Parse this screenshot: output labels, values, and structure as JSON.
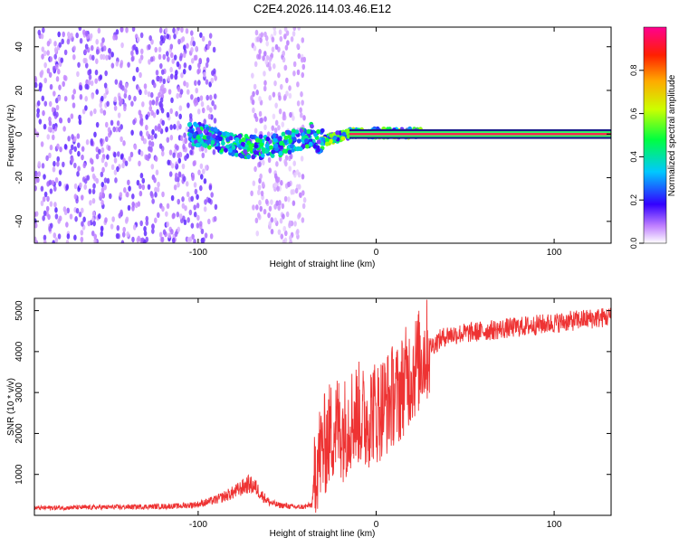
{
  "title": "C2E4.2026.114.03.46.E12",
  "chart_data": [
    {
      "type": "heatmap",
      "xlabel": "Height of straight line (km)",
      "ylabel": "Frequency (Hz)",
      "xlim": [
        -192,
        132
      ],
      "ylim": [
        -50,
        49
      ],
      "xticks": [
        -100,
        0,
        100
      ],
      "yticks": [
        -40,
        -20,
        0,
        20,
        40
      ],
      "colorbar": {
        "label": "Normalized spectral amplitude",
        "range": [
          0,
          1
        ],
        "ticks": [
          0.0,
          0.2,
          0.4,
          0.6,
          0.8
        ]
      }
    },
    {
      "type": "line",
      "xlabel": "Height of straight line (km)",
      "ylabel": "SNR (10 * v/v)",
      "xlim": [
        -192,
        132
      ],
      "ylim": [
        0,
        5300
      ],
      "xticks": [
        -100,
        0,
        100
      ],
      "yticks": [
        1000,
        2000,
        3000,
        4000,
        5000
      ],
      "color": "#ee3333",
      "series": [
        {
          "name": "SNR",
          "x": [
            -192,
            -170,
            -150,
            -130,
            -110,
            -100,
            -90,
            -80,
            -72,
            -68,
            -64,
            -60,
            -55,
            -50,
            -45,
            -40,
            -36,
            -34,
            -30,
            -26,
            -22,
            -18,
            -14,
            -10,
            -6,
            -2,
            0,
            4,
            8,
            10,
            12,
            16,
            20,
            26,
            30,
            36,
            40,
            50,
            60,
            70,
            80,
            90,
            100,
            110,
            120,
            132
          ],
          "values": [
            180,
            190,
            200,
            210,
            230,
            270,
            380,
            560,
            760,
            700,
            480,
            320,
            250,
            230,
            200,
            210,
            260,
            1300,
            1600,
            2000,
            2200,
            2100,
            2400,
            2500,
            2300,
            2600,
            2500,
            2700,
            2800,
            3000,
            2900,
            3300,
            3500,
            3900,
            4100,
            4300,
            4400,
            4450,
            4500,
            4550,
            4600,
            4650,
            4700,
            4750,
            4800,
            4850
          ]
        }
      ]
    }
  ]
}
